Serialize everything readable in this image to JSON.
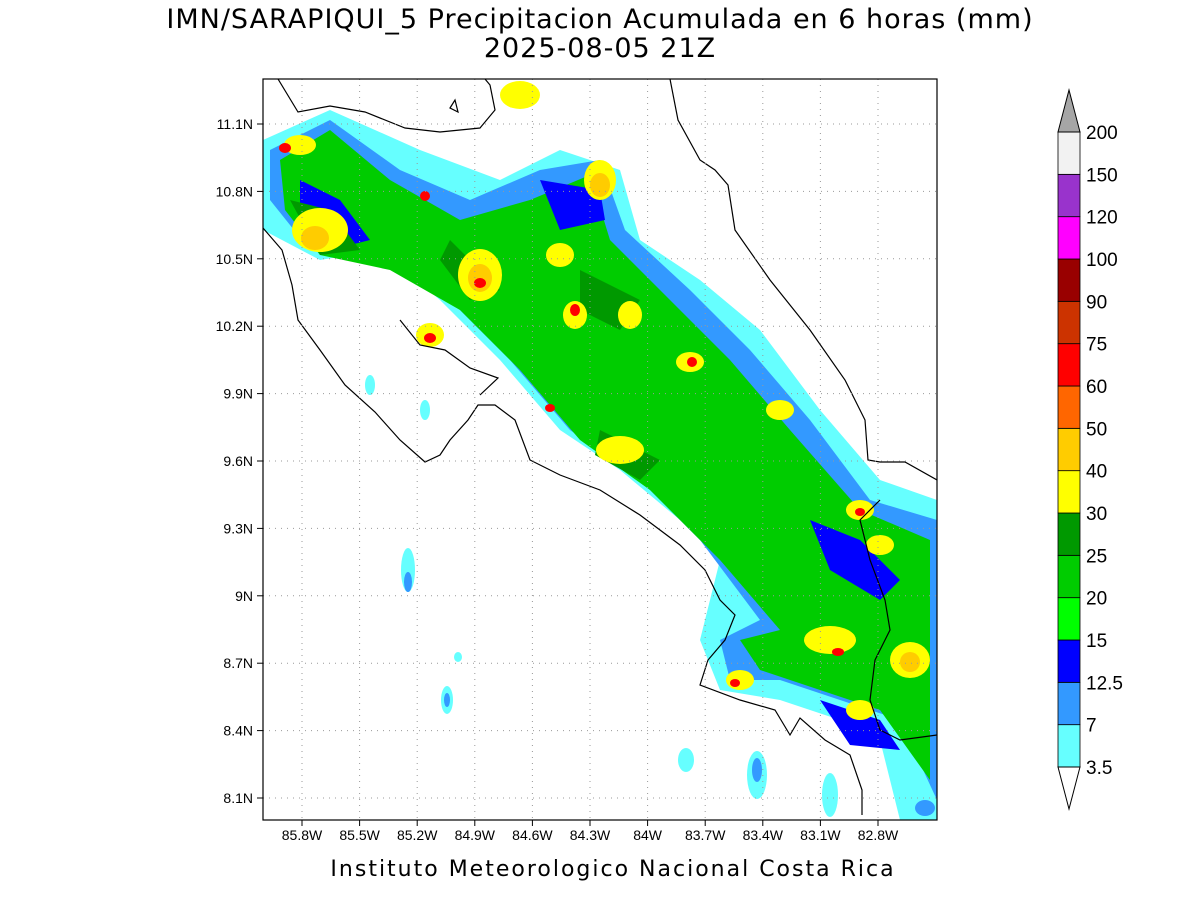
{
  "header": {
    "title": "IMN/SARAPIQUI_5 Precipitacion Acumulada en 6 horas (mm)",
    "subtitle": "2025-08-05 21Z"
  },
  "map": {
    "lat_ticks": [
      "11.1N",
      "10.8N",
      "10.5N",
      "10.2N",
      "9.9N",
      "9.6N",
      "9.3N",
      "9N",
      "8.7N",
      "8.4N",
      "8.1N"
    ],
    "lon_ticks": [
      "85.8W",
      "85.5W",
      "85.2W",
      "84.9W",
      "84.6W",
      "84.3W",
      "84W",
      "83.7W",
      "83.4W",
      "83.1W",
      "82.8W"
    ]
  },
  "colorbar": {
    "labels": [
      "3.5",
      "7",
      "12.5",
      "15",
      "20",
      "25",
      "30",
      "40",
      "50",
      "60",
      "75",
      "90",
      "100",
      "120",
      "150",
      "200"
    ],
    "colors": [
      "#66ffff",
      "#3399ff",
      "#0000ff",
      "#00ff00",
      "#00cc00",
      "#009900",
      "#ffff00",
      "#ffcc00",
      "#ff6600",
      "#ff0000",
      "#cc3300",
      "#990000",
      "#ff00ff",
      "#9933cc",
      "#f2f2f2"
    ],
    "under_color": "#ffffff",
    "over_color": "#a6a6a6"
  },
  "footer": {
    "text": "Instituto Meteorologico Nacional Costa Rica"
  }
}
